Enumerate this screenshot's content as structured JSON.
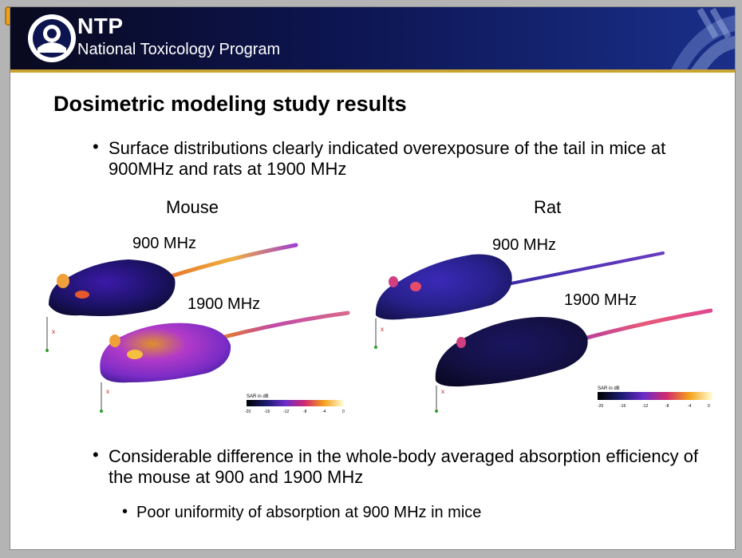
{
  "header": {
    "org_abbr": "NTP",
    "org_name": "National Toxicology Program"
  },
  "title": "Dosimetric modeling study results",
  "bullets": [
    "Surface distributions clearly indicated overexposure of the tail in mice at 900MHz and rats at 1900 MHz",
    "Considerable difference in the whole-body averaged absorption efficiency of the mouse at 900 and 1900 MHz"
  ],
  "sub_bullets": [
    "Poor uniformity of absorption at 900 MHz in mice"
  ],
  "figures": {
    "mouse": {
      "label": "Mouse",
      "freq_top": "900 MHz",
      "freq_bottom": "1900 MHz",
      "colorbar": {
        "title": "SAR in dB",
        "ticks": [
          "-20",
          "-16",
          "-12",
          "-8",
          "-4",
          "0"
        ]
      }
    },
    "rat": {
      "label": "Rat",
      "freq_top": "900 MHz",
      "freq_bottom": "1900 MHz",
      "colorbar": {
        "title": "SAR in dB",
        "ticks": [
          "-20",
          "-16",
          "-12",
          "-8",
          "-4",
          "0"
        ]
      }
    }
  },
  "colors": {
    "banner_dark": "#09091f",
    "banner_blue": "#1a2f8a",
    "banner_rule": "#c9a430",
    "notes_icon": "#f0a018"
  }
}
